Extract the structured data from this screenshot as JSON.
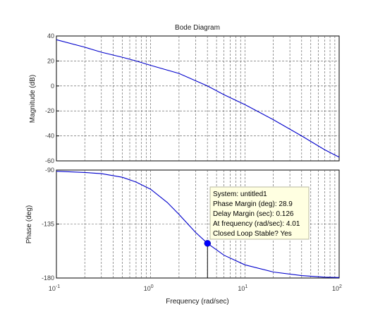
{
  "chart_data": {
    "type": "line",
    "title": "Bode Diagram",
    "xlabel": "Frequency  (rad/sec)",
    "x_scale": "log",
    "xlim": [
      0.1,
      100
    ],
    "x_tick_labels": [
      {
        "base": "10",
        "exp": "-1"
      },
      {
        "base": "10",
        "exp": "0"
      },
      {
        "base": "10",
        "exp": "1"
      },
      {
        "base": "10",
        "exp": "2"
      }
    ],
    "grid": true,
    "colors": {
      "line": "#0000cc",
      "grid": "#555555",
      "tip_bg": "#ffffe1",
      "tip_border": "#b8b8a0"
    },
    "magnitude": {
      "ylabel": "Magnitude (dB)",
      "ylim": [
        -60,
        40
      ],
      "yticks": [
        "40",
        "20",
        "0",
        "-20",
        "-40",
        "-60"
      ],
      "series": [
        {
          "x": [
            0.1,
            0.2,
            0.3,
            0.5,
            0.7,
            1.0,
            2.0,
            4.0,
            6.0,
            10.0,
            20.0,
            40.0,
            70.0,
            100.0
          ],
          "y": [
            37,
            31,
            27,
            23,
            20,
            16.5,
            10,
            0,
            -7,
            -15,
            -27,
            -40,
            -51,
            -57
          ]
        }
      ]
    },
    "phase": {
      "ylabel": "Phase (deg)",
      "ylim": [
        -180,
        -90
      ],
      "yticks": [
        "-90",
        "-135",
        "-180"
      ],
      "series": [
        {
          "x": [
            0.1,
            0.2,
            0.3,
            0.5,
            0.7,
            1.0,
            1.5,
            2.0,
            3.0,
            4.01,
            6.0,
            10.0,
            20.0,
            40.0,
            70.0,
            100.0
          ],
          "y": [
            -91,
            -92,
            -93,
            -96,
            -100,
            -106,
            -117,
            -127,
            -142,
            -151.1,
            -161,
            -169,
            -175,
            -178,
            -179.3,
            -179.6
          ]
        }
      ]
    },
    "marker": {
      "x": 4.01,
      "y": -151.1
    },
    "annotation": [
      "System: untitled1",
      "Phase Margin (deg): 28.9",
      "Delay Margin (sec): 0.126",
      "At frequency (rad/sec): 4.01",
      "Closed Loop Stable? Yes"
    ]
  }
}
